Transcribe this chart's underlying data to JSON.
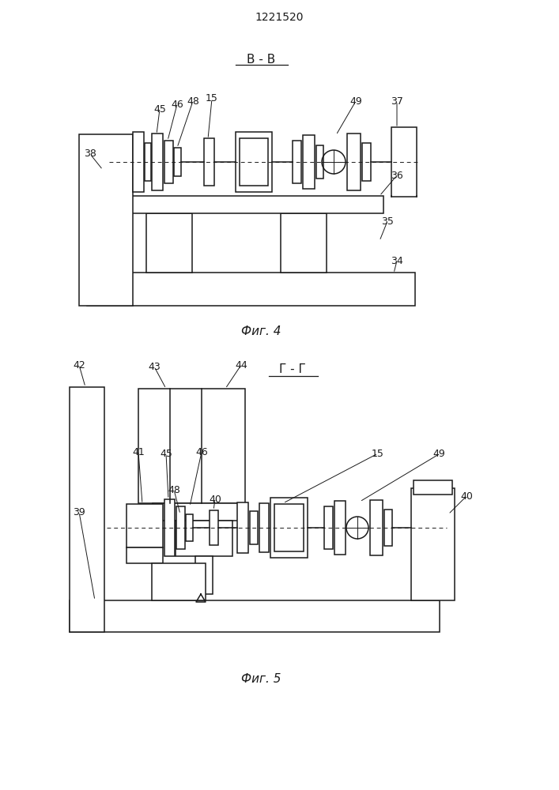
{
  "title": "1221520",
  "fig4_label": "Фиг. 4",
  "fig5_label": "Фиг. 5",
  "section_b": "В - В",
  "section_g": "Г - Г",
  "bg_color": "#ffffff",
  "lc": "#1a1a1a",
  "lw": 1.1
}
